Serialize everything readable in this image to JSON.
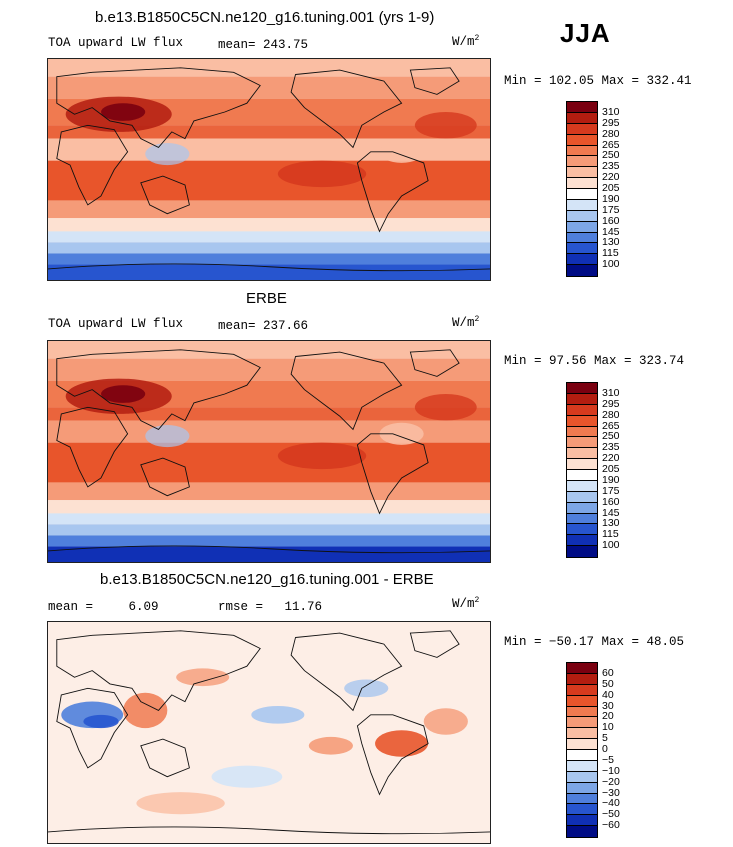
{
  "season": "JJA",
  "units_main": "W/m",
  "units_exp": "2",
  "panels": [
    {
      "title": "b.e13.B1850C5CN.ne120_g16.tuning.001 (yrs 1-9)",
      "left_label": "TOA upward LW flux",
      "stat_label": "mean=",
      "stat_value": "243.75",
      "minmax": "Min = 102.05 Max = 332.41"
    },
    {
      "title": "ERBE",
      "left_label": "TOA upward LW flux",
      "stat_label": "mean=",
      "stat_value": "237.66",
      "minmax": "Min =  97.56 Max = 323.74"
    },
    {
      "title": "b.e13.B1850C5CN.ne120_g16.tuning.001 - ERBE",
      "left_label": "mean =",
      "left_value": "6.09",
      "stat_label": "rmse =",
      "stat_value": "11.76",
      "minmax": "Min = −50.17 Max =  48.05"
    }
  ],
  "chart_data": [
    {
      "type": "heatmap",
      "title": "b.e13.B1850C5CN.ne120_g16.tuning.001 (yrs 1-9)",
      "variable": "TOA upward LW flux",
      "units": "W/m2",
      "mean": 243.75,
      "min": 102.05,
      "max": 332.41,
      "colorbar_levels": [
        310,
        295,
        280,
        265,
        250,
        235,
        220,
        205,
        190,
        175,
        160,
        145,
        130,
        115,
        100
      ],
      "colorbar_colors": [
        "#7a0010",
        "#b31d10",
        "#d63a1e",
        "#e8552b",
        "#f07a50",
        "#f59b78",
        "#fabea3",
        "#fde1d2",
        "#ffffff",
        "#d4e4f7",
        "#a8c6ef",
        "#7da6e6",
        "#4f7fdc",
        "#2755cf",
        "#1030b5",
        "#000c85"
      ]
    },
    {
      "type": "heatmap",
      "title": "ERBE",
      "variable": "TOA upward LW flux",
      "units": "W/m2",
      "mean": 237.66,
      "min": 97.56,
      "max": 323.74,
      "colorbar_levels": [
        310,
        295,
        280,
        265,
        250,
        235,
        220,
        205,
        190,
        175,
        160,
        145,
        130,
        115,
        100
      ],
      "colorbar_colors": [
        "#7a0010",
        "#b31d10",
        "#d63a1e",
        "#e8552b",
        "#f07a50",
        "#f59b78",
        "#fabea3",
        "#fde1d2",
        "#ffffff",
        "#d4e4f7",
        "#a8c6ef",
        "#7da6e6",
        "#4f7fdc",
        "#2755cf",
        "#1030b5",
        "#000c85"
      ]
    },
    {
      "type": "heatmap",
      "title": "b.e13.B1850C5CN.ne120_g16.tuning.001 - ERBE",
      "units": "W/m2",
      "mean": 6.09,
      "rmse": 11.76,
      "min": -50.17,
      "max": 48.05,
      "colorbar_levels": [
        "60",
        "50",
        "40",
        "30",
        "20",
        "10",
        "5",
        "0",
        "−5",
        "−10",
        "−20",
        "−30",
        "−40",
        "−50",
        "−60"
      ],
      "colorbar_colors": [
        "#7a0010",
        "#b31d10",
        "#d63a1e",
        "#e8552b",
        "#f07a50",
        "#f59b78",
        "#fabea3",
        "#fde1d2",
        "#ffffff",
        "#d4e4f7",
        "#a8c6ef",
        "#7da6e6",
        "#4f7fdc",
        "#2755cf",
        "#1030b5",
        "#000c85"
      ]
    }
  ]
}
